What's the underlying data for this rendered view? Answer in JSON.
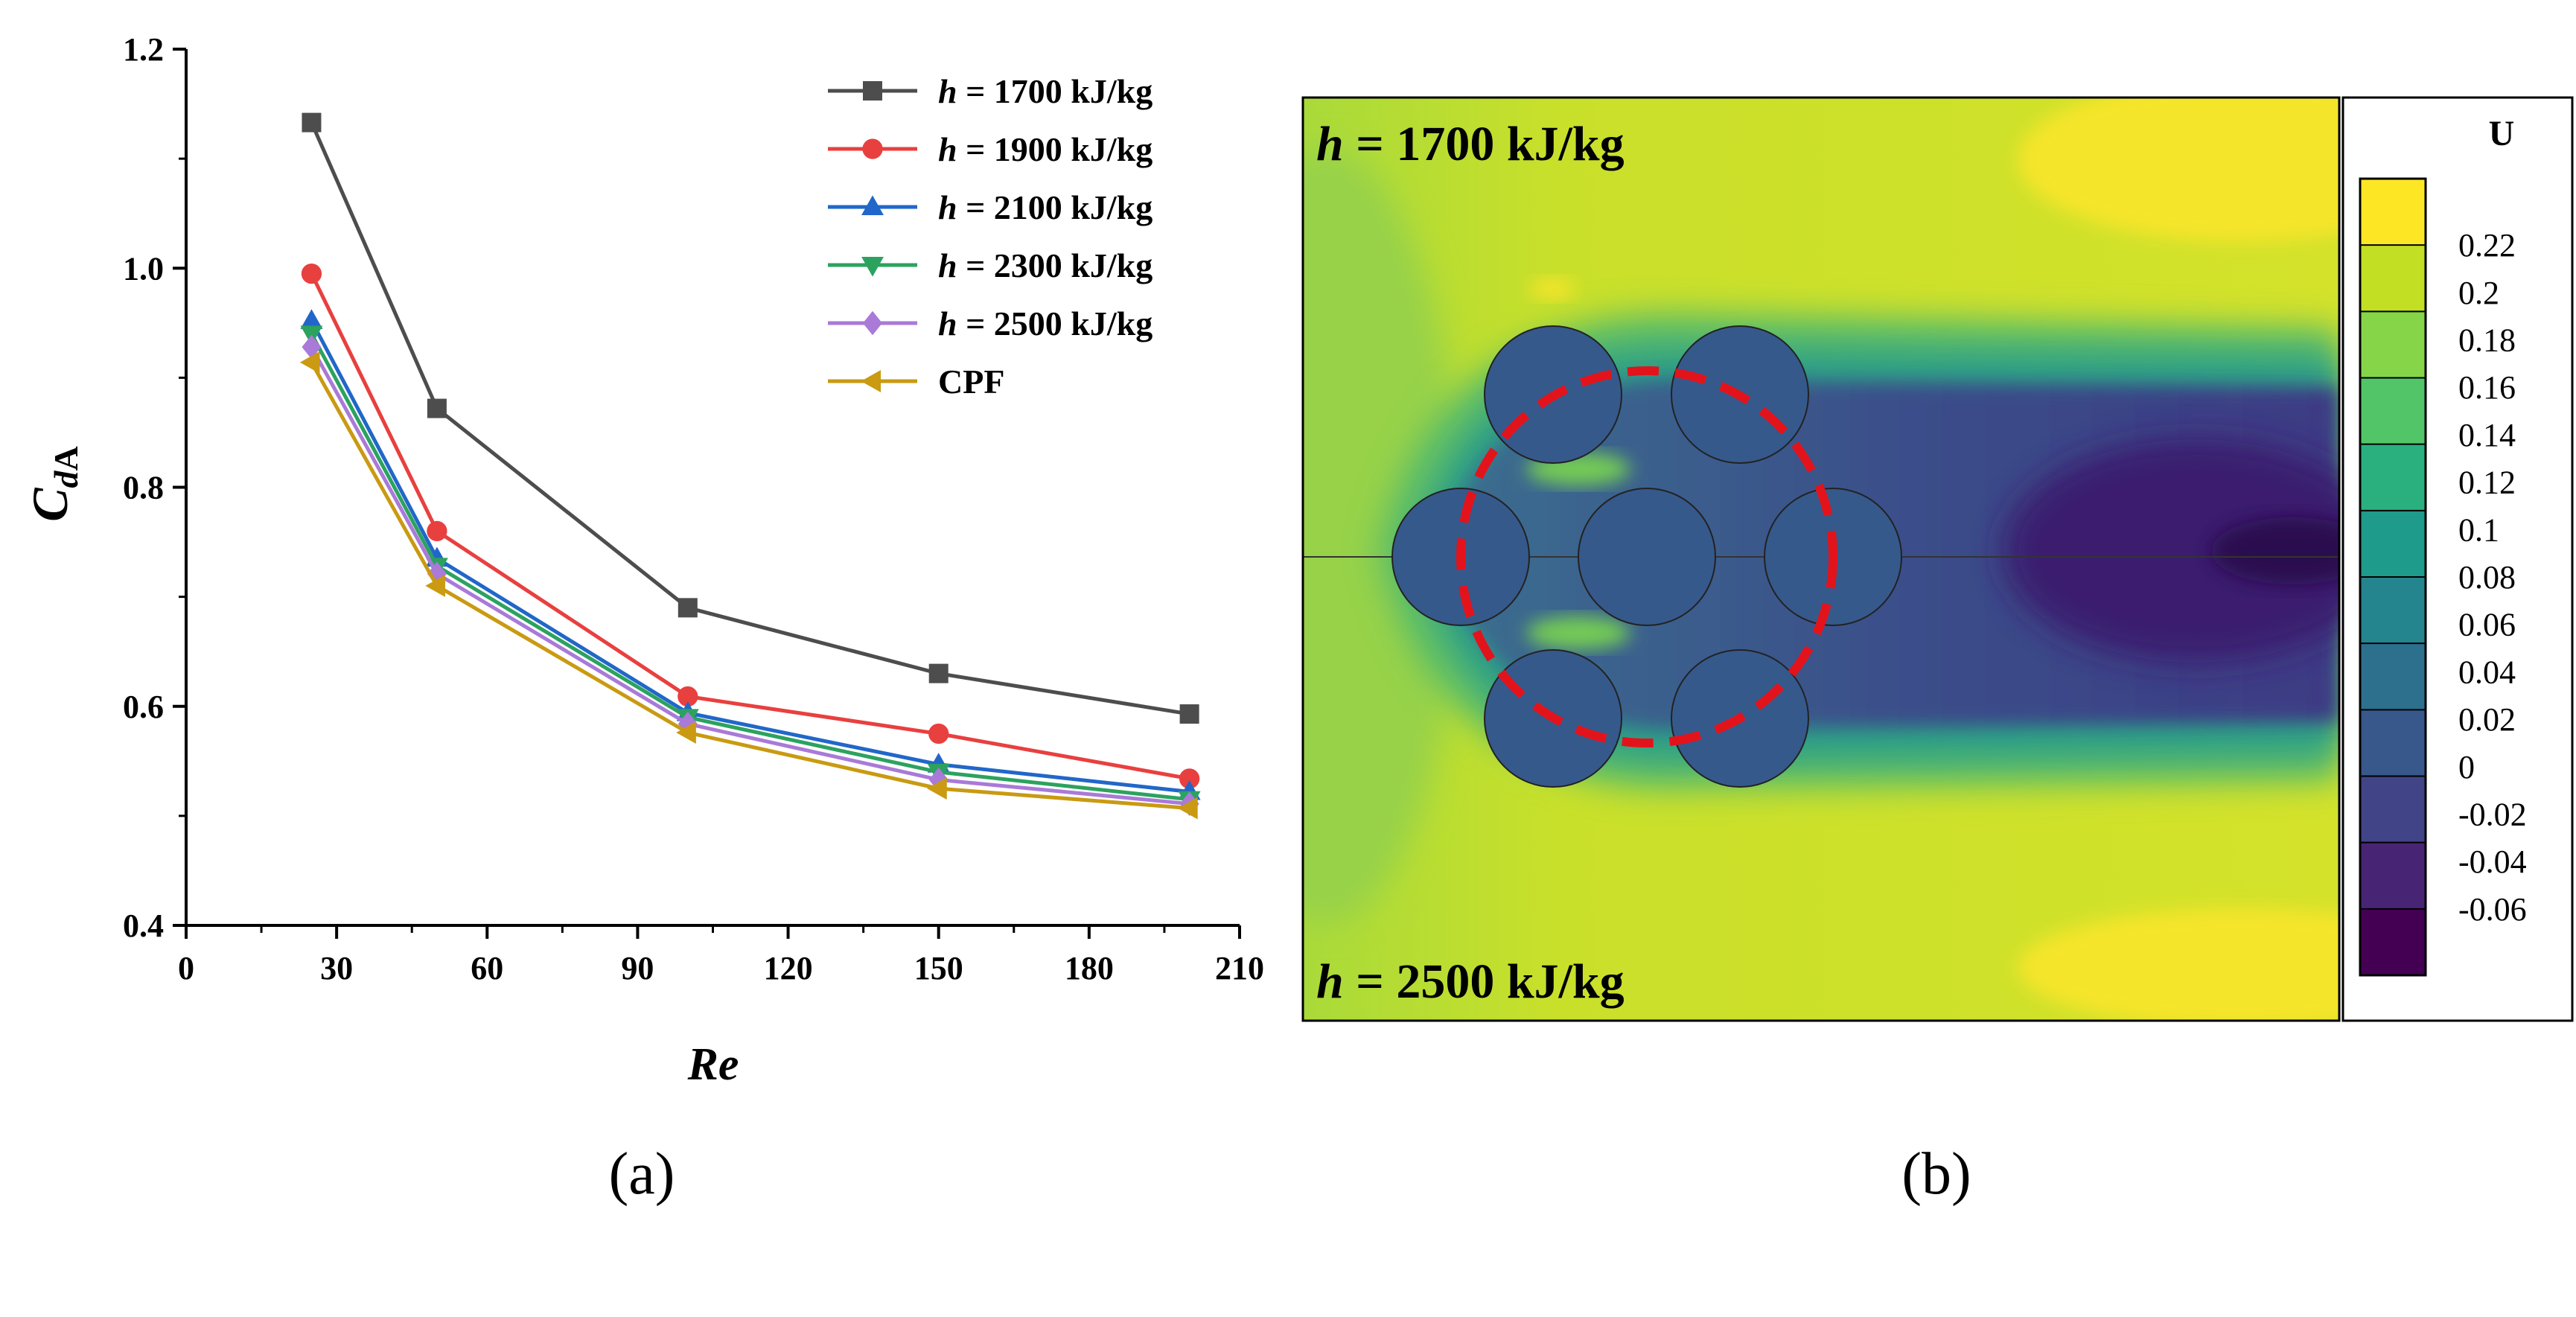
{
  "figure": {
    "panel_a_label": "(a)",
    "panel_b_label": "(b)"
  },
  "chart_data": [
    {
      "type": "line",
      "title": "",
      "xlabel": "Re",
      "ylabel_main": "C",
      "ylabel_sub_italic": "d",
      "ylabel_sub": "A",
      "xlim": [
        0,
        210
      ],
      "ylim": [
        0.4,
        1.2
      ],
      "xticks": [
        "0",
        "30",
        "60",
        "90",
        "120",
        "150",
        "180",
        "210"
      ],
      "yticks": [
        "0.4",
        "0.6",
        "0.8",
        "1.0",
        "1.2"
      ],
      "grid": false,
      "legend_position": "top-right",
      "x": [
        25,
        50,
        100,
        150,
        200
      ],
      "series": [
        {
          "name": "1700 kJ/kg",
          "prefix": "h",
          "color": "#4d4d4d",
          "marker": "square",
          "values": [
            1.133,
            0.872,
            0.69,
            0.63,
            0.593
          ]
        },
        {
          "name": "1900 kJ/kg",
          "prefix": "h",
          "color": "#e8403f",
          "marker": "circle",
          "values": [
            0.995,
            0.76,
            0.609,
            0.575,
            0.534
          ]
        },
        {
          "name": "2100 kJ/kg",
          "prefix": "h",
          "color": "#2167c9",
          "marker": "triangle-up",
          "values": [
            0.952,
            0.735,
            0.594,
            0.547,
            0.522
          ]
        },
        {
          "name": "2300 kJ/kg",
          "prefix": "h",
          "color": "#2ca25f",
          "marker": "triangle-down",
          "values": [
            0.94,
            0.728,
            0.59,
            0.54,
            0.515
          ]
        },
        {
          "name": "2500 kJ/kg",
          "prefix": "h",
          "color": "#a97ad8",
          "marker": "diamond",
          "values": [
            0.928,
            0.721,
            0.584,
            0.533,
            0.511
          ]
        },
        {
          "name": "CPF",
          "prefix": "",
          "color": "#c99a12",
          "marker": "triangle-left",
          "values": [
            0.914,
            0.71,
            0.576,
            0.525,
            0.507
          ]
        }
      ]
    },
    {
      "type": "heatmap",
      "title": "",
      "colorbar_title": "U",
      "colorbar_ticks": [
        "0.22",
        "0.2",
        "0.18",
        "0.16",
        "0.14",
        "0.12",
        "0.1",
        "0.08",
        "0.06",
        "0.04",
        "0.02",
        "0",
        "-0.02",
        "-0.04",
        "-0.06"
      ],
      "colorbar_colors": [
        "#fde725",
        "#c2df23",
        "#86d549",
        "#52c569",
        "#2ab07f",
        "#1e9b8a",
        "#25858e",
        "#2d708e",
        "#38588c",
        "#414487",
        "#482475",
        "#440154"
      ],
      "top_label_prefix": "h",
      "top_label_value": " = 1700 kJ/kg",
      "bottom_label_prefix": "h",
      "bottom_label_value": " = 2500 kJ/kg"
    }
  ]
}
